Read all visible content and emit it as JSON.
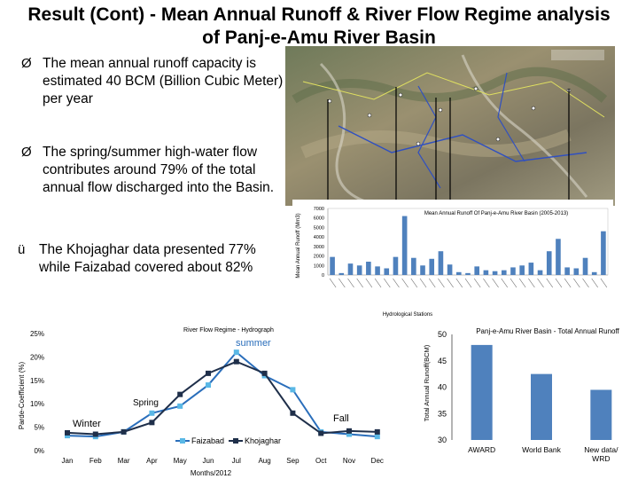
{
  "slide": {
    "title_line1": "Result (Cont) - Mean Annual Runoff & River Flow Regime analysis",
    "title_line2": "of Panj-e-Amu River Basin"
  },
  "bullets": [
    {
      "marker": "Ø",
      "text": "The mean annual runoff capacity is estimated 40 BCM (Billion Cubic Meter) per year"
    },
    {
      "marker": "Ø",
      "text": "The spring/summer high-water flow contributes around 79% of the total annual flow discharged into the Basin."
    },
    {
      "marker": "ü",
      "text": "The Khojaghar data presented 77% while Faizabad covered about 82%"
    }
  ],
  "colors": {
    "bar_blue": "#4f81bd",
    "faizabad_line": "#2a6ebb",
    "faizabad_marker": "#5ab8e6",
    "khojaghar_line": "#1f2f4a",
    "map_ground": "#8a8a6a"
  },
  "chart_data": [
    {
      "id": "station-runoff",
      "type": "bar",
      "title": "Mean Annual Runoff Of Panj-e-Amu River Basin (2005-2013)",
      "xlabel": "Hydrological Stations",
      "ylabel": "Mean Annual Runoff (Mm3)",
      "ylim": [
        0,
        7000
      ],
      "yticks": [
        0,
        1000,
        2000,
        3000,
        4000,
        5000,
        6000,
        7000
      ],
      "values": [
        1900,
        200,
        1200,
        1000,
        1400,
        900,
        700,
        1900,
        6200,
        1800,
        1000,
        1700,
        2500,
        1100,
        300,
        200,
        900,
        500,
        400,
        500,
        800,
        1000,
        1300,
        500,
        2500,
        3800,
        800,
        700,
        1800,
        300,
        4600
      ]
    },
    {
      "id": "flow-regime",
      "type": "line",
      "title": "River Flow Regime - Hydrograph",
      "xlabel": "Months/2012",
      "ylabel": "Parde-Coefficient (%)",
      "categories": [
        "Jan",
        "Feb",
        "Mar",
        "Apr",
        "May",
        "Jun",
        "Jul",
        "Aug",
        "Sep",
        "Oct",
        "Nov",
        "Dec"
      ],
      "ylim": [
        0,
        25
      ],
      "yticks": [
        "0%",
        "5%",
        "10%",
        "15%",
        "20%",
        "25%"
      ],
      "series": [
        {
          "name": "Faizabad",
          "values": [
            3.2,
            3.0,
            4.0,
            8.0,
            9.5,
            14.0,
            21.0,
            16.0,
            13.0,
            4.0,
            3.5,
            3.0
          ]
        },
        {
          "name": "Khojaghar",
          "values": [
            3.8,
            3.5,
            4.0,
            6.0,
            12.0,
            16.5,
            19.0,
            16.5,
            8.0,
            3.7,
            4.2,
            4.0
          ]
        }
      ],
      "annotations": [
        "summer",
        "Spring",
        "Winter",
        "Fall"
      ]
    },
    {
      "id": "total-runoff",
      "type": "bar",
      "title": "Panj-e-Amu River Basin - Total Annual Runoff",
      "ylabel": "Total Annual Runoff(BCM)",
      "categories": [
        "AWARD",
        "World Bank",
        "New data/WRD"
      ],
      "values": [
        48,
        42.5,
        39.5
      ],
      "ylim": [
        30,
        50
      ],
      "yticks": [
        30,
        35,
        40,
        45,
        50
      ]
    }
  ]
}
